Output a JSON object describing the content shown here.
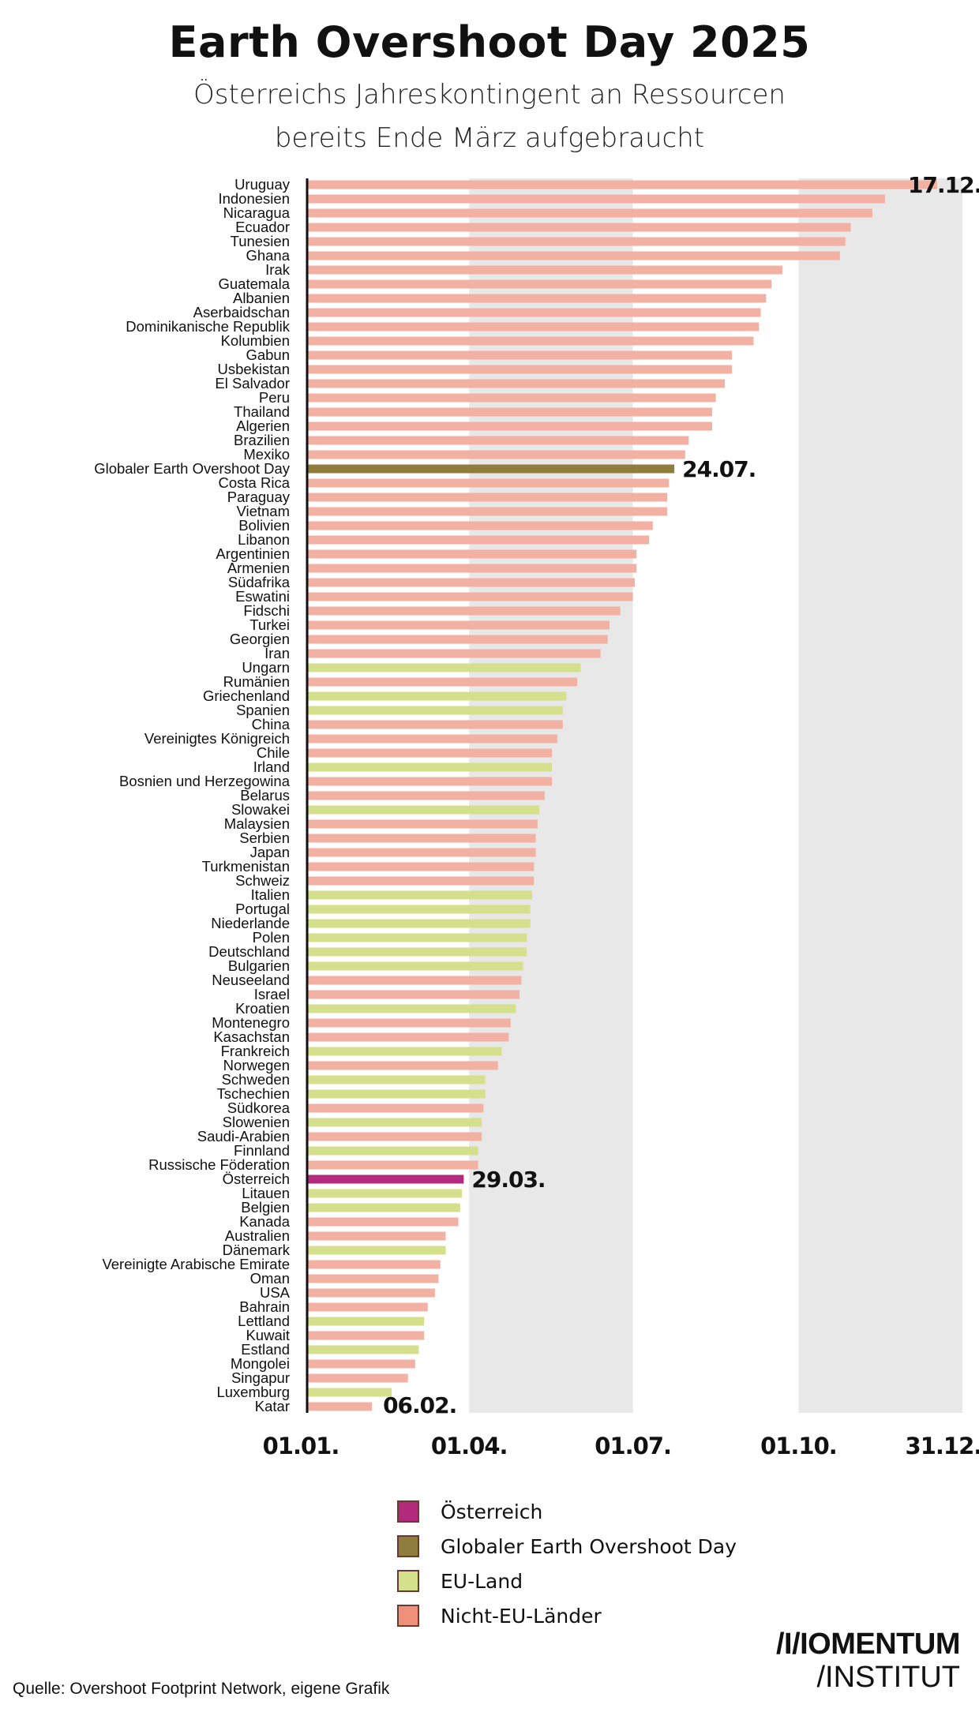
{
  "title": "Earth Overshoot Day 2025",
  "subtitle_line1": "Österreichs Jahreskontingent an Ressourcen",
  "subtitle_line2": "bereits Ende März aufgebraucht",
  "source": "Quelle: Overshoot Footprint Network, eigene Grafik",
  "logo": {
    "line1": "/I/IOMENTUM",
    "line2": "/INSTITUT"
  },
  "colors": {
    "austria": "#b22a7c",
    "global": "#8e7d3c",
    "eu": "#d4e08c",
    "non-eu": "#f2b1a2",
    "non-eu-legend": "#ee907a",
    "quarter_band": "#e8e8e8",
    "axis": "#111111"
  },
  "legend": [
    {
      "label": "Österreich",
      "group": "austria"
    },
    {
      "label": "Globaler Earth Overshoot Day",
      "group": "global"
    },
    {
      "label": "EU-Land",
      "group": "eu"
    },
    {
      "label": "Nicht-EU-Länder",
      "group": "non-eu-legend"
    }
  ],
  "chart_data": {
    "type": "bar",
    "orientation": "horizontal",
    "title": "Earth Overshoot Day 2025",
    "x_axis": {
      "type": "date",
      "year": 2025,
      "range": [
        "01.01.",
        "31.12."
      ],
      "ticks": [
        "01.01.",
        "01.04.",
        "01.07.",
        "01.10.",
        "31.12."
      ],
      "shaded_quarters": [
        "Q2",
        "Q4"
      ]
    },
    "legend_placement": "bottom",
    "grid": false,
    "value_labels": {
      "Uruguay": "17.12.",
      "Globaler Earth Overshoot Day": "24.07.",
      "Österreich": "29.03.",
      "Katar": "06.02."
    },
    "rows": [
      {
        "name": "Uruguay",
        "date": "17.12.",
        "group": "non-eu"
      },
      {
        "name": "Indonesien",
        "date": "18.11.",
        "group": "non-eu"
      },
      {
        "name": "Nicaragua",
        "date": "11.11.",
        "group": "non-eu"
      },
      {
        "name": "Ecuador",
        "date": "30.10.",
        "group": "non-eu"
      },
      {
        "name": "Tunesien",
        "date": "27.10.",
        "group": "non-eu"
      },
      {
        "name": "Ghana",
        "date": "24.10.",
        "group": "non-eu"
      },
      {
        "name": "Irak",
        "date": "22.09.",
        "group": "non-eu"
      },
      {
        "name": "Guatemala",
        "date": "16.09.",
        "group": "non-eu"
      },
      {
        "name": "Albanien",
        "date": "13.09.",
        "group": "non-eu"
      },
      {
        "name": "Aserbaidschan",
        "date": "10.09.",
        "group": "non-eu"
      },
      {
        "name": "Dominikanische Republik",
        "date": "09.09.",
        "group": "non-eu"
      },
      {
        "name": "Kolumbien",
        "date": "06.09.",
        "group": "non-eu"
      },
      {
        "name": "Gabun",
        "date": "25.08.",
        "group": "non-eu"
      },
      {
        "name": "Usbekistan",
        "date": "25.08.",
        "group": "non-eu"
      },
      {
        "name": "El Salvador",
        "date": "21.08.",
        "group": "non-eu"
      },
      {
        "name": "Peru",
        "date": "16.08.",
        "group": "non-eu"
      },
      {
        "name": "Thailand",
        "date": "14.08.",
        "group": "non-eu"
      },
      {
        "name": "Algerien",
        "date": "14.08.",
        "group": "non-eu"
      },
      {
        "name": "Brazilien",
        "date": "01.08.",
        "group": "non-eu"
      },
      {
        "name": "Mexiko",
        "date": "30.07.",
        "group": "non-eu"
      },
      {
        "name": "Globaler Earth Overshoot Day",
        "date": "24.07.",
        "group": "global"
      },
      {
        "name": "Costa Rica",
        "date": "21.07.",
        "group": "non-eu"
      },
      {
        "name": "Paraguay",
        "date": "20.07.",
        "group": "non-eu"
      },
      {
        "name": "Vietnam",
        "date": "20.07.",
        "group": "non-eu"
      },
      {
        "name": "Bolivien",
        "date": "12.07.",
        "group": "non-eu"
      },
      {
        "name": "Libanon",
        "date": "10.07.",
        "group": "non-eu"
      },
      {
        "name": "Argentinien",
        "date": "03.07.",
        "group": "non-eu"
      },
      {
        "name": "Armenien",
        "date": "03.07.",
        "group": "non-eu"
      },
      {
        "name": "Südafrika",
        "date": "02.07.",
        "group": "non-eu"
      },
      {
        "name": "Eswatini",
        "date": "01.07.",
        "group": "non-eu"
      },
      {
        "name": "Fidschi",
        "date": "24.06.",
        "group": "non-eu"
      },
      {
        "name": "Turkei",
        "date": "18.06.",
        "group": "non-eu"
      },
      {
        "name": "Georgien",
        "date": "17.06.",
        "group": "non-eu"
      },
      {
        "name": "Iran",
        "date": "13.06.",
        "group": "non-eu"
      },
      {
        "name": "Ungarn",
        "date": "02.06.",
        "group": "eu"
      },
      {
        "name": "Rumänien",
        "date": "31.05.",
        "group": "non-eu"
      },
      {
        "name": "Griechenland",
        "date": "25.05.",
        "group": "eu"
      },
      {
        "name": "Spanien",
        "date": "23.05.",
        "group": "eu"
      },
      {
        "name": "China",
        "date": "23.05.",
        "group": "non-eu"
      },
      {
        "name": "Vereinigtes Königreich",
        "date": "20.05.",
        "group": "non-eu"
      },
      {
        "name": "Chile",
        "date": "17.05.",
        "group": "non-eu"
      },
      {
        "name": "Irland",
        "date": "17.05.",
        "group": "eu"
      },
      {
        "name": "Bosnien und Herzegowina",
        "date": "17.05.",
        "group": "non-eu"
      },
      {
        "name": "Belarus",
        "date": "13.05.",
        "group": "non-eu"
      },
      {
        "name": "Slowakei",
        "date": "10.05.",
        "group": "eu"
      },
      {
        "name": "Malaysien",
        "date": "09.05.",
        "group": "non-eu"
      },
      {
        "name": "Serbien",
        "date": "08.05.",
        "group": "non-eu"
      },
      {
        "name": "Japan",
        "date": "08.05.",
        "group": "non-eu"
      },
      {
        "name": "Turkmenistan",
        "date": "07.05.",
        "group": "non-eu"
      },
      {
        "name": "Schweiz",
        "date": "07.05.",
        "group": "non-eu"
      },
      {
        "name": "Italien",
        "date": "06.05.",
        "group": "eu"
      },
      {
        "name": "Portugal",
        "date": "05.05.",
        "group": "eu"
      },
      {
        "name": "Niederlande",
        "date": "05.05.",
        "group": "eu"
      },
      {
        "name": "Polen",
        "date": "03.05.",
        "group": "eu"
      },
      {
        "name": "Deutschland",
        "date": "03.05.",
        "group": "eu"
      },
      {
        "name": "Bulgarien",
        "date": "01.05.",
        "group": "eu"
      },
      {
        "name": "Neuseeland",
        "date": "30.04.",
        "group": "non-eu"
      },
      {
        "name": "Israel",
        "date": "29.04.",
        "group": "non-eu"
      },
      {
        "name": "Kroatien",
        "date": "27.04.",
        "group": "eu"
      },
      {
        "name": "Montenegro",
        "date": "24.04.",
        "group": "non-eu"
      },
      {
        "name": "Kasachstan",
        "date": "23.04.",
        "group": "non-eu"
      },
      {
        "name": "Frankreich",
        "date": "19.04.",
        "group": "eu"
      },
      {
        "name": "Norwegen",
        "date": "17.04.",
        "group": "non-eu"
      },
      {
        "name": "Schweden",
        "date": "10.04.",
        "group": "eu"
      },
      {
        "name": "Tschechien",
        "date": "10.04.",
        "group": "eu"
      },
      {
        "name": "Südkorea",
        "date": "09.04.",
        "group": "non-eu"
      },
      {
        "name": "Slowenien",
        "date": "08.04.",
        "group": "eu"
      },
      {
        "name": "Saudi-Arabien",
        "date": "08.04.",
        "group": "non-eu"
      },
      {
        "name": "Finnland",
        "date": "06.04.",
        "group": "eu"
      },
      {
        "name": "Russische Föderation",
        "date": "06.04.",
        "group": "non-eu"
      },
      {
        "name": "Österreich",
        "date": "29.03.",
        "group": "austria"
      },
      {
        "name": "Litauen",
        "date": "28.03.",
        "group": "eu"
      },
      {
        "name": "Belgien",
        "date": "27.03.",
        "group": "eu"
      },
      {
        "name": "Kanada",
        "date": "26.03.",
        "group": "non-eu"
      },
      {
        "name": "Australien",
        "date": "19.03.",
        "group": "non-eu"
      },
      {
        "name": "Dänemark",
        "date": "19.03.",
        "group": "eu"
      },
      {
        "name": "Vereinigte Arabische Emirate",
        "date": "16.03.",
        "group": "non-eu"
      },
      {
        "name": "Oman",
        "date": "15.03.",
        "group": "non-eu"
      },
      {
        "name": "USA",
        "date": "13.03.",
        "group": "non-eu"
      },
      {
        "name": "Bahrain",
        "date": "09.03.",
        "group": "non-eu"
      },
      {
        "name": "Lettland",
        "date": "07.03.",
        "group": "eu"
      },
      {
        "name": "Kuwait",
        "date": "07.03.",
        "group": "non-eu"
      },
      {
        "name": "Estland",
        "date": "04.03.",
        "group": "eu"
      },
      {
        "name": "Mongolei",
        "date": "02.03.",
        "group": "non-eu"
      },
      {
        "name": "Singapur",
        "date": "26.02.",
        "group": "non-eu"
      },
      {
        "name": "Luxemburg",
        "date": "17.02.",
        "group": "eu"
      },
      {
        "name": "Katar",
        "date": "06.02.",
        "group": "non-eu"
      }
    ]
  }
}
